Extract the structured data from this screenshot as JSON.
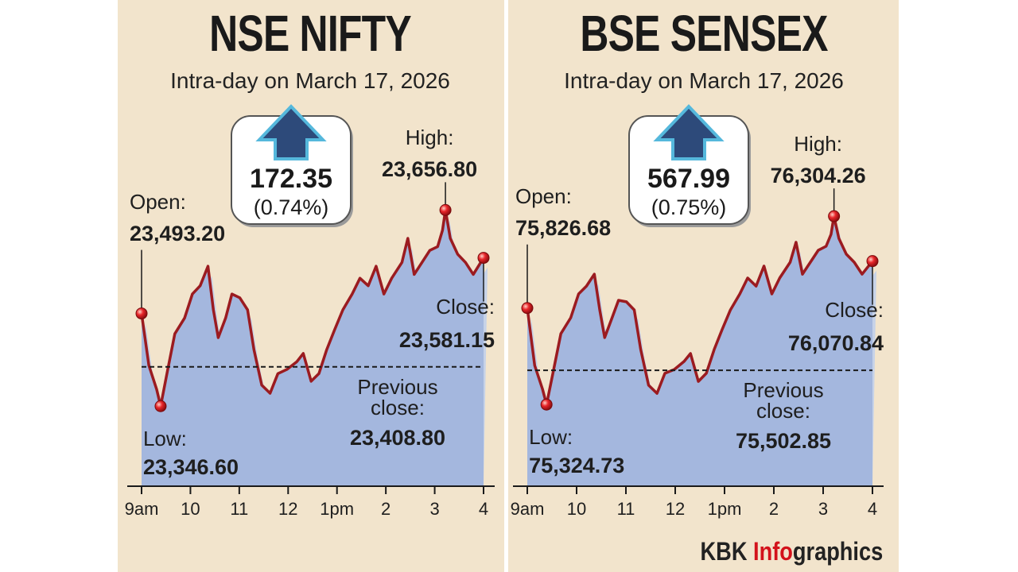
{
  "chart_data": [
    {
      "type": "area",
      "title": "NSE NIFTY",
      "subtitle": "Intra-day on March 17, 2026",
      "change": 172.35,
      "change_percent": {
        "value": 0.74,
        "label": "(0.74%)"
      },
      "color": "#9b1b20",
      "area_color": "#a4b7de",
      "x": [
        9.0,
        9.15,
        9.31,
        9.39,
        9.52,
        9.68,
        9.88,
        10.04,
        10.2,
        10.36,
        10.47,
        10.57,
        10.72,
        10.85,
        11.01,
        11.17,
        11.3,
        11.46,
        11.63,
        11.79,
        11.98,
        12.18,
        12.31,
        12.47,
        12.63,
        12.79,
        12.95,
        13.12,
        13.31,
        13.47,
        13.64,
        13.8,
        13.96,
        14.12,
        14.33,
        14.45,
        14.58,
        14.74,
        14.9,
        15.06,
        15.16,
        15.22,
        15.32,
        15.47,
        15.63,
        15.79,
        16.0
      ],
      "values": [
        23493.2,
        23411,
        23373,
        23346.6,
        23398,
        23461,
        23486,
        23524,
        23537,
        23568,
        23499,
        23455,
        23486,
        23524,
        23518,
        23499,
        23436,
        23380,
        23367,
        23398,
        23405,
        23417,
        23430,
        23386,
        23398,
        23436,
        23467,
        23499,
        23524,
        23549,
        23537,
        23568,
        23524,
        23549,
        23574,
        23612,
        23555,
        23574,
        23593,
        23599,
        23625,
        23656.8,
        23612,
        23587,
        23574,
        23555,
        23581.15
      ],
      "point_labels": [
        "Open:",
        null,
        null,
        "Low:",
        null,
        null,
        null,
        null,
        null,
        null,
        null,
        null,
        null,
        null,
        null,
        null,
        null,
        null,
        null,
        null,
        null,
        null,
        null,
        null,
        null,
        null,
        null,
        null,
        null,
        null,
        null,
        null,
        null,
        null,
        null,
        null,
        null,
        null,
        null,
        null,
        null,
        "High:",
        null,
        null,
        null,
        null,
        "Close:"
      ],
      "value_labels": [
        "23,493.20",
        null,
        null,
        "23,346.60",
        null,
        null,
        null,
        null,
        null,
        null,
        null,
        null,
        null,
        null,
        null,
        null,
        null,
        null,
        null,
        null,
        null,
        null,
        null,
        null,
        null,
        null,
        null,
        null,
        null,
        null,
        null,
        null,
        null,
        null,
        null,
        null,
        null,
        null,
        null,
        null,
        null,
        "23,656.80",
        null,
        null,
        null,
        null,
        "23,581.15"
      ],
      "reference_line": {
        "label": "Previous close:",
        "value": 23408.8,
        "value_label": "23,408.80"
      },
      "xlim": [
        9,
        16
      ],
      "xticks": [
        {
          "value": 9,
          "label": "9am"
        },
        10,
        11,
        12,
        {
          "value": 13,
          "label": "1pm"
        },
        {
          "value": 14,
          "label": "2"
        },
        {
          "value": 15,
          "label": "3"
        },
        {
          "value": 16,
          "label": "4"
        }
      ],
      "ylim": [
        23220,
        23700
      ]
    },
    {
      "type": "area",
      "title": "BSE SENSEX",
      "subtitle": "Intra-day on March 17, 2026",
      "change": 567.99,
      "change_percent": {
        "value": 0.75,
        "label": "(0.75%)"
      },
      "color": "#9b1b20",
      "area_color": "#a4b7de",
      "x": [
        9.0,
        9.15,
        9.31,
        9.39,
        9.52,
        9.68,
        9.88,
        10.04,
        10.2,
        10.36,
        10.47,
        10.57,
        10.72,
        10.85,
        11.01,
        11.17,
        11.3,
        11.46,
        11.63,
        11.79,
        11.98,
        12.18,
        12.31,
        12.47,
        12.63,
        12.79,
        12.95,
        13.12,
        13.31,
        13.47,
        13.64,
        13.8,
        13.96,
        14.12,
        14.33,
        14.45,
        14.58,
        14.74,
        14.9,
        15.06,
        15.16,
        15.22,
        15.32,
        15.47,
        15.63,
        15.79,
        16.0
      ],
      "values": [
        75826.68,
        75528,
        75404,
        75324.73,
        75487,
        75693,
        75776,
        75900,
        75941,
        76003,
        75817,
        75673,
        75776,
        75867,
        75859,
        75817,
        75611,
        75425,
        75383,
        75487,
        75507,
        75549,
        75590,
        75445,
        75487,
        75611,
        75714,
        75817,
        75900,
        75983,
        75941,
        76045,
        75900,
        75983,
        76065,
        76169,
        76003,
        76065,
        76127,
        76148,
        76210,
        76304.26,
        76189,
        76107,
        76065,
        76003,
        76070.84
      ],
      "point_labels": [
        "Open:",
        null,
        null,
        "Low:",
        null,
        null,
        null,
        null,
        null,
        null,
        null,
        null,
        null,
        null,
        null,
        null,
        null,
        null,
        null,
        null,
        null,
        null,
        null,
        null,
        null,
        null,
        null,
        null,
        null,
        null,
        null,
        null,
        null,
        null,
        null,
        null,
        null,
        null,
        null,
        null,
        null,
        "High:",
        null,
        null,
        null,
        null,
        "Close:"
      ],
      "value_labels": [
        "75,826.68",
        null,
        null,
        "75,324.73",
        null,
        null,
        null,
        null,
        null,
        null,
        null,
        null,
        null,
        null,
        null,
        null,
        null,
        null,
        null,
        null,
        null,
        null,
        null,
        null,
        null,
        null,
        null,
        null,
        null,
        null,
        null,
        null,
        null,
        null,
        null,
        null,
        null,
        null,
        null,
        null,
        null,
        "76,304.26",
        null,
        null,
        null,
        null,
        "76,070.84"
      ],
      "reference_line": {
        "label": "Previous close:",
        "value": 75502.85,
        "value_label": "75,502.85"
      },
      "xlim": [
        9,
        16
      ],
      "xticks": [
        {
          "value": 9,
          "label": "9am"
        },
        10,
        11,
        12,
        {
          "value": 13,
          "label": "1pm"
        },
        {
          "value": 14,
          "label": "2"
        },
        {
          "value": 15,
          "label": "3"
        },
        {
          "value": 16,
          "label": "4"
        }
      ],
      "ylim": [
        74900,
        76400
      ]
    }
  ],
  "footer": {
    "brand": "KBK",
    "brand_highlight": "Info",
    "brand_rest": "graphics"
  }
}
